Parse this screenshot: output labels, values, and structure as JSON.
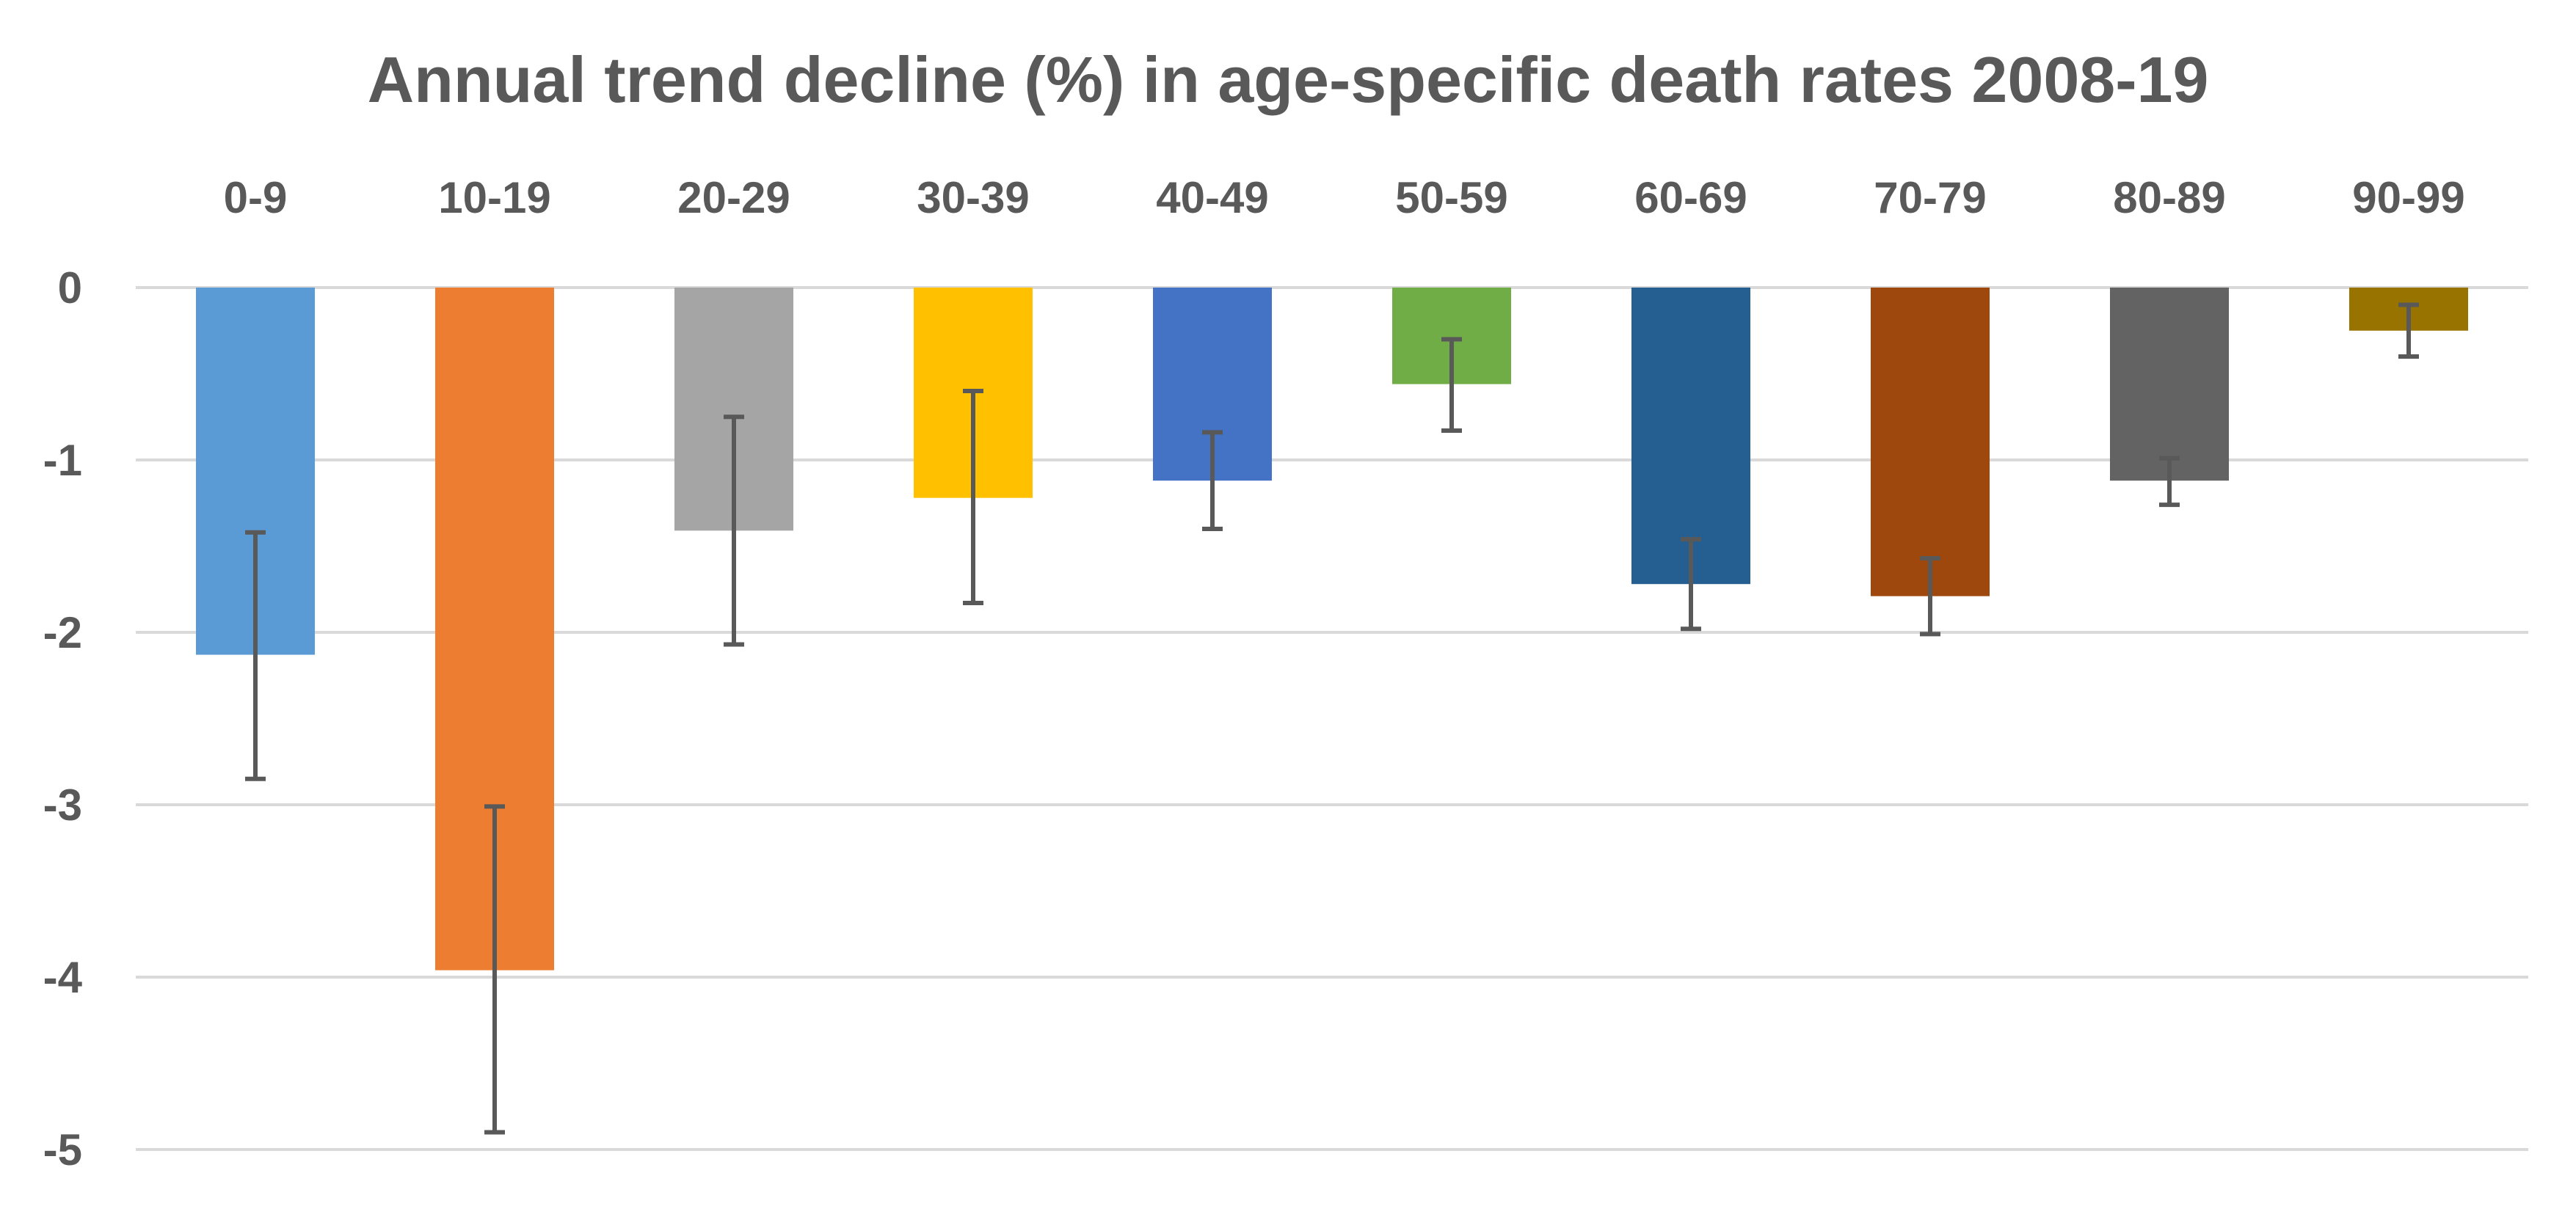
{
  "chart_data": {
    "type": "bar",
    "title": "Annual trend decline (%) in age-specific death rates 2008-19",
    "xlabel": "",
    "ylabel": "",
    "ylim": [
      -5,
      0
    ],
    "yticks": [
      0,
      -1,
      -2,
      -3,
      -4,
      -5
    ],
    "categories": [
      "0-9",
      "10-19",
      "20-29",
      "30-39",
      "40-49",
      "50-59",
      "60-69",
      "70-79",
      "80-89",
      "90-99"
    ],
    "values": [
      -2.13,
      -3.96,
      -1.41,
      -1.22,
      -1.12,
      -0.56,
      -1.72,
      -1.79,
      -1.12,
      -0.25
    ],
    "error_low": [
      -2.85,
      -4.9,
      -2.07,
      -1.83,
      -1.4,
      -0.83,
      -1.98,
      -2.01,
      -1.26,
      -0.4
    ],
    "error_high": [
      -1.42,
      -3.01,
      -0.75,
      -0.6,
      -0.84,
      -0.3,
      -1.46,
      -1.57,
      -0.99,
      -0.1
    ],
    "colors": [
      "#5b9bd5",
      "#ed7d31",
      "#a5a5a5",
      "#ffc000",
      "#4472c4",
      "#70ad47",
      "#255e91",
      "#9e480e",
      "#636363",
      "#997300"
    ],
    "category_labels_position": "top",
    "grid": true,
    "legend": "none"
  }
}
